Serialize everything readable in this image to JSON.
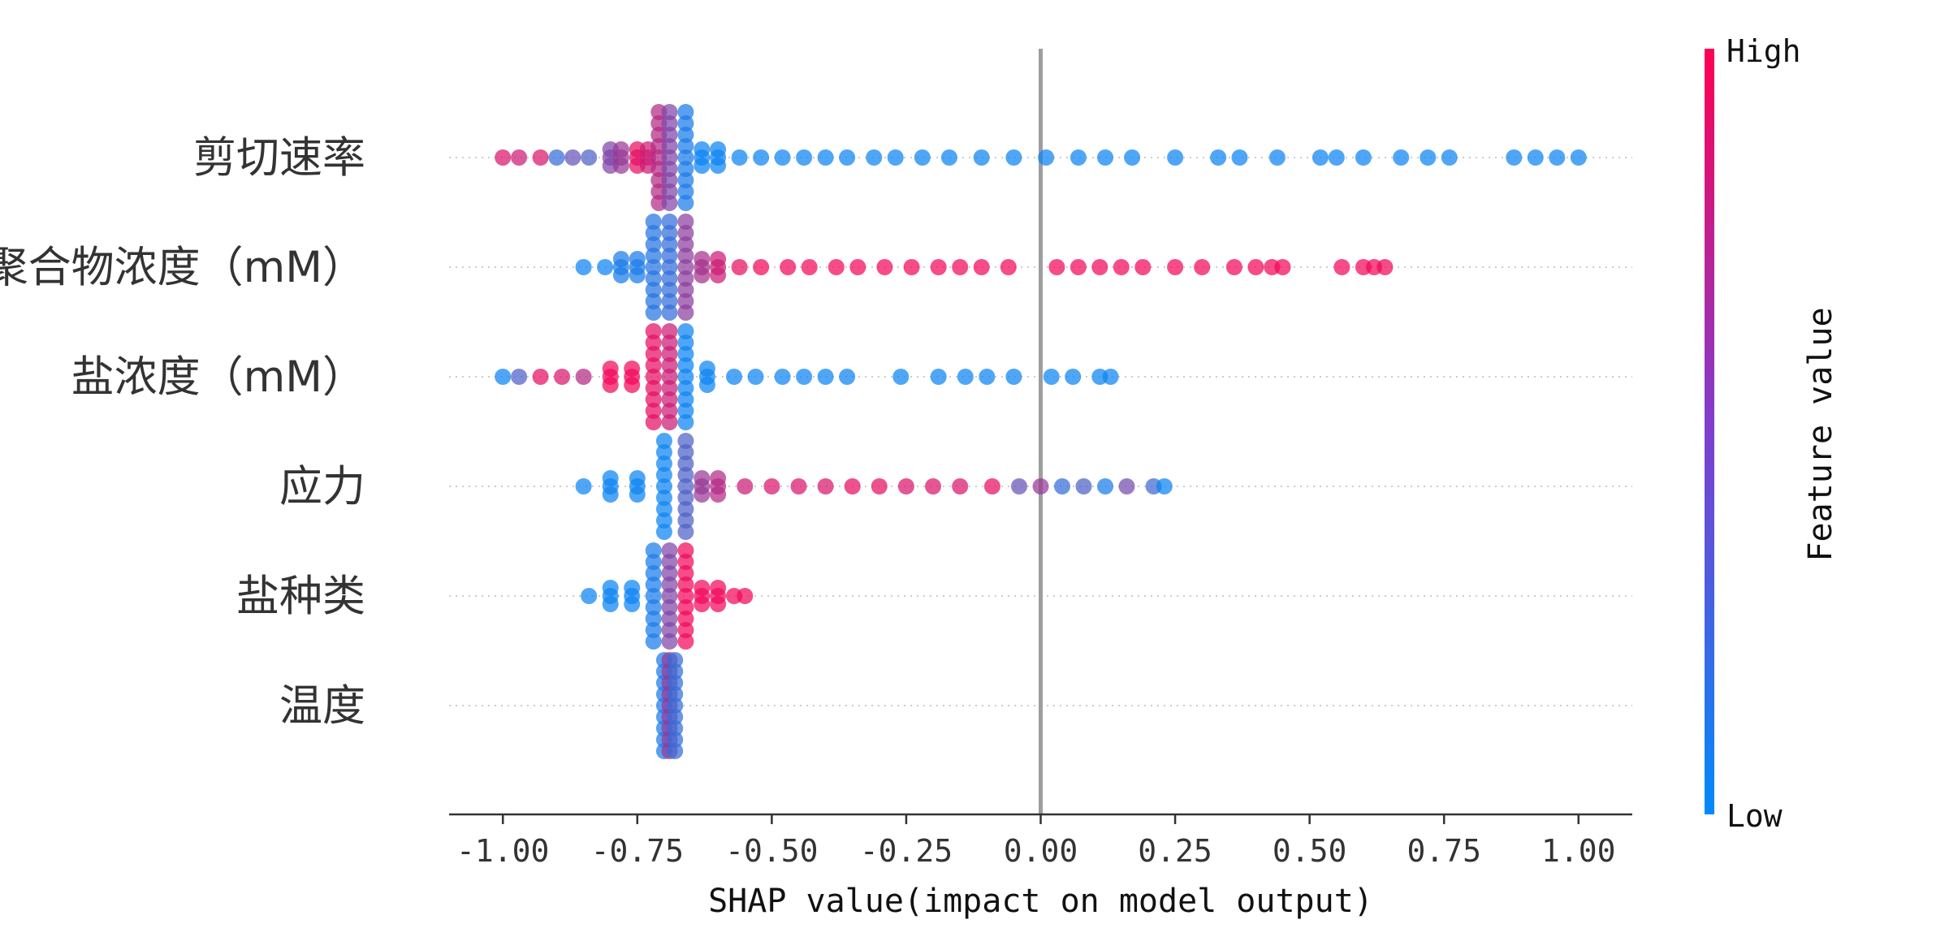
{
  "chart_data": {
    "type": "scatter",
    "subtype": "shap-beeswarm",
    "title": "",
    "xlabel": "SHAP value(impact on model output)",
    "ylabel": "",
    "xlim": [
      -1.1,
      1.1
    ],
    "xticks": [
      -1.0,
      -0.75,
      -0.5,
      -0.25,
      0.0,
      0.25,
      0.5,
      0.75,
      1.0
    ],
    "xtick_labels": [
      "-1.00",
      "-0.75",
      "-0.50",
      "-0.25",
      "0.00",
      "0.25",
      "0.50",
      "0.75",
      "1.00"
    ],
    "zero_line": 0.0,
    "grid": false,
    "colorbar": {
      "title": "Feature value",
      "high_label": "High",
      "low_label": "Low",
      "low_color": "#008afb",
      "high_color": "#ff0052"
    },
    "features": [
      {
        "name": "剪切速率",
        "points": [
          {
            "x": -1.0,
            "v": 0.85
          },
          {
            "x": -0.97,
            "v": 0.8
          },
          {
            "x": -0.93,
            "v": 0.85
          },
          {
            "x": -0.9,
            "v": 0.2
          },
          {
            "x": -0.87,
            "v": 0.4
          },
          {
            "x": -0.84,
            "v": 0.3
          },
          {
            "x": -0.8,
            "v": 0.5
          },
          {
            "x": -0.78,
            "v": 0.6
          },
          {
            "x": -0.75,
            "v": 0.9
          },
          {
            "x": -0.73,
            "v": 0.8
          },
          {
            "x": -0.71,
            "v": 0.7
          },
          {
            "x": -0.69,
            "v": 0.5
          },
          {
            "x": -0.66,
            "v": 0.1
          },
          {
            "x": -0.63,
            "v": 0.05
          },
          {
            "x": -0.6,
            "v": 0.05
          },
          {
            "x": -0.56,
            "v": 0.05
          },
          {
            "x": -0.52,
            "v": 0.05
          },
          {
            "x": -0.48,
            "v": 0.05
          },
          {
            "x": -0.44,
            "v": 0.05
          },
          {
            "x": -0.4,
            "v": 0.05
          },
          {
            "x": -0.36,
            "v": 0.05
          },
          {
            "x": -0.31,
            "v": 0.05
          },
          {
            "x": -0.27,
            "v": 0.05
          },
          {
            "x": -0.22,
            "v": 0.05
          },
          {
            "x": -0.17,
            "v": 0.05
          },
          {
            "x": -0.11,
            "v": 0.05
          },
          {
            "x": -0.05,
            "v": 0.05
          },
          {
            "x": 0.01,
            "v": 0.05
          },
          {
            "x": 0.07,
            "v": 0.05
          },
          {
            "x": 0.12,
            "v": 0.05
          },
          {
            "x": 0.17,
            "v": 0.05
          },
          {
            "x": 0.25,
            "v": 0.05
          },
          {
            "x": 0.33,
            "v": 0.05
          },
          {
            "x": 0.37,
            "v": 0.05
          },
          {
            "x": 0.44,
            "v": 0.05
          },
          {
            "x": 0.52,
            "v": 0.05
          },
          {
            "x": 0.55,
            "v": 0.05
          },
          {
            "x": 0.6,
            "v": 0.05
          },
          {
            "x": 0.67,
            "v": 0.05
          },
          {
            "x": 0.72,
            "v": 0.05
          },
          {
            "x": 0.76,
            "v": 0.05
          },
          {
            "x": 0.88,
            "v": 0.05
          },
          {
            "x": 0.92,
            "v": 0.05
          },
          {
            "x": 0.96,
            "v": 0.05
          },
          {
            "x": 1.0,
            "v": 0.05
          }
        ]
      },
      {
        "name": "聚合物浓度（mM）",
        "points": [
          {
            "x": -0.85,
            "v": 0.05
          },
          {
            "x": -0.81,
            "v": 0.05
          },
          {
            "x": -0.78,
            "v": 0.1
          },
          {
            "x": -0.75,
            "v": 0.1
          },
          {
            "x": -0.72,
            "v": 0.15
          },
          {
            "x": -0.69,
            "v": 0.2
          },
          {
            "x": -0.66,
            "v": 0.55
          },
          {
            "x": -0.63,
            "v": 0.65
          },
          {
            "x": -0.6,
            "v": 0.8
          },
          {
            "x": -0.56,
            "v": 0.9
          },
          {
            "x": -0.52,
            "v": 0.95
          },
          {
            "x": -0.47,
            "v": 0.95
          },
          {
            "x": -0.43,
            "v": 0.95
          },
          {
            "x": -0.38,
            "v": 0.95
          },
          {
            "x": -0.34,
            "v": 0.95
          },
          {
            "x": -0.29,
            "v": 0.95
          },
          {
            "x": -0.24,
            "v": 0.95
          },
          {
            "x": -0.19,
            "v": 0.95
          },
          {
            "x": -0.15,
            "v": 0.95
          },
          {
            "x": -0.11,
            "v": 0.95
          },
          {
            "x": -0.06,
            "v": 0.95
          },
          {
            "x": 0.03,
            "v": 0.95
          },
          {
            "x": 0.07,
            "v": 0.95
          },
          {
            "x": 0.11,
            "v": 0.95
          },
          {
            "x": 0.15,
            "v": 0.95
          },
          {
            "x": 0.19,
            "v": 0.95
          },
          {
            "x": 0.25,
            "v": 0.95
          },
          {
            "x": 0.3,
            "v": 0.95
          },
          {
            "x": 0.36,
            "v": 0.95
          },
          {
            "x": 0.4,
            "v": 0.95
          },
          {
            "x": 0.43,
            "v": 0.95
          },
          {
            "x": 0.45,
            "v": 0.95
          },
          {
            "x": 0.56,
            "v": 0.95
          },
          {
            "x": 0.6,
            "v": 0.95
          },
          {
            "x": 0.62,
            "v": 0.95
          },
          {
            "x": 0.64,
            "v": 0.95
          }
        ]
      },
      {
        "name": "盐浓度（mM）",
        "points": [
          {
            "x": -1.0,
            "v": 0.05
          },
          {
            "x": -0.97,
            "v": 0.3
          },
          {
            "x": -0.93,
            "v": 0.9
          },
          {
            "x": -0.89,
            "v": 0.85
          },
          {
            "x": -0.85,
            "v": 0.7
          },
          {
            "x": -0.8,
            "v": 0.95
          },
          {
            "x": -0.76,
            "v": 0.95
          },
          {
            "x": -0.72,
            "v": 0.9
          },
          {
            "x": -0.69,
            "v": 0.8
          },
          {
            "x": -0.66,
            "v": 0.05
          },
          {
            "x": -0.62,
            "v": 0.05
          },
          {
            "x": -0.57,
            "v": 0.05
          },
          {
            "x": -0.53,
            "v": 0.05
          },
          {
            "x": -0.48,
            "v": 0.05
          },
          {
            "x": -0.44,
            "v": 0.05
          },
          {
            "x": -0.4,
            "v": 0.05
          },
          {
            "x": -0.36,
            "v": 0.05
          },
          {
            "x": -0.26,
            "v": 0.05
          },
          {
            "x": -0.19,
            "v": 0.05
          },
          {
            "x": -0.14,
            "v": 0.05
          },
          {
            "x": -0.1,
            "v": 0.05
          },
          {
            "x": -0.05,
            "v": 0.05
          },
          {
            "x": 0.02,
            "v": 0.05
          },
          {
            "x": 0.06,
            "v": 0.05
          },
          {
            "x": 0.11,
            "v": 0.05
          },
          {
            "x": 0.13,
            "v": 0.05
          }
        ]
      },
      {
        "name": "应力",
        "points": [
          {
            "x": -0.85,
            "v": 0.05
          },
          {
            "x": -0.8,
            "v": 0.05
          },
          {
            "x": -0.75,
            "v": 0.05
          },
          {
            "x": -0.7,
            "v": 0.05
          },
          {
            "x": -0.66,
            "v": 0.3
          },
          {
            "x": -0.63,
            "v": 0.6
          },
          {
            "x": -0.6,
            "v": 0.7
          },
          {
            "x": -0.55,
            "v": 0.8
          },
          {
            "x": -0.5,
            "v": 0.85
          },
          {
            "x": -0.45,
            "v": 0.85
          },
          {
            "x": -0.4,
            "v": 0.85
          },
          {
            "x": -0.35,
            "v": 0.9
          },
          {
            "x": -0.3,
            "v": 0.9
          },
          {
            "x": -0.25,
            "v": 0.85
          },
          {
            "x": -0.2,
            "v": 0.85
          },
          {
            "x": -0.15,
            "v": 0.85
          },
          {
            "x": -0.09,
            "v": 0.9
          },
          {
            "x": -0.04,
            "v": 0.4
          },
          {
            "x": 0.0,
            "v": 0.6
          },
          {
            "x": 0.04,
            "v": 0.2
          },
          {
            "x": 0.08,
            "v": 0.3
          },
          {
            "x": 0.12,
            "v": 0.1
          },
          {
            "x": 0.16,
            "v": 0.45
          },
          {
            "x": 0.21,
            "v": 0.25
          },
          {
            "x": 0.23,
            "v": 0.05
          }
        ]
      },
      {
        "name": "盐种类",
        "points": [
          {
            "x": -0.84,
            "v": 0.05
          },
          {
            "x": -0.8,
            "v": 0.05
          },
          {
            "x": -0.76,
            "v": 0.05
          },
          {
            "x": -0.72,
            "v": 0.1
          },
          {
            "x": -0.69,
            "v": 0.5
          },
          {
            "x": -0.66,
            "v": 0.95
          },
          {
            "x": -0.63,
            "v": 0.95
          },
          {
            "x": -0.6,
            "v": 0.95
          },
          {
            "x": -0.57,
            "v": 0.95
          },
          {
            "x": -0.55,
            "v": 0.95
          }
        ]
      },
      {
        "name": "温度",
        "points": [
          {
            "x": -0.7,
            "v": 0.1
          },
          {
            "x": -0.69,
            "v": 0.6
          },
          {
            "x": -0.68,
            "v": 0.2
          }
        ]
      }
    ]
  }
}
